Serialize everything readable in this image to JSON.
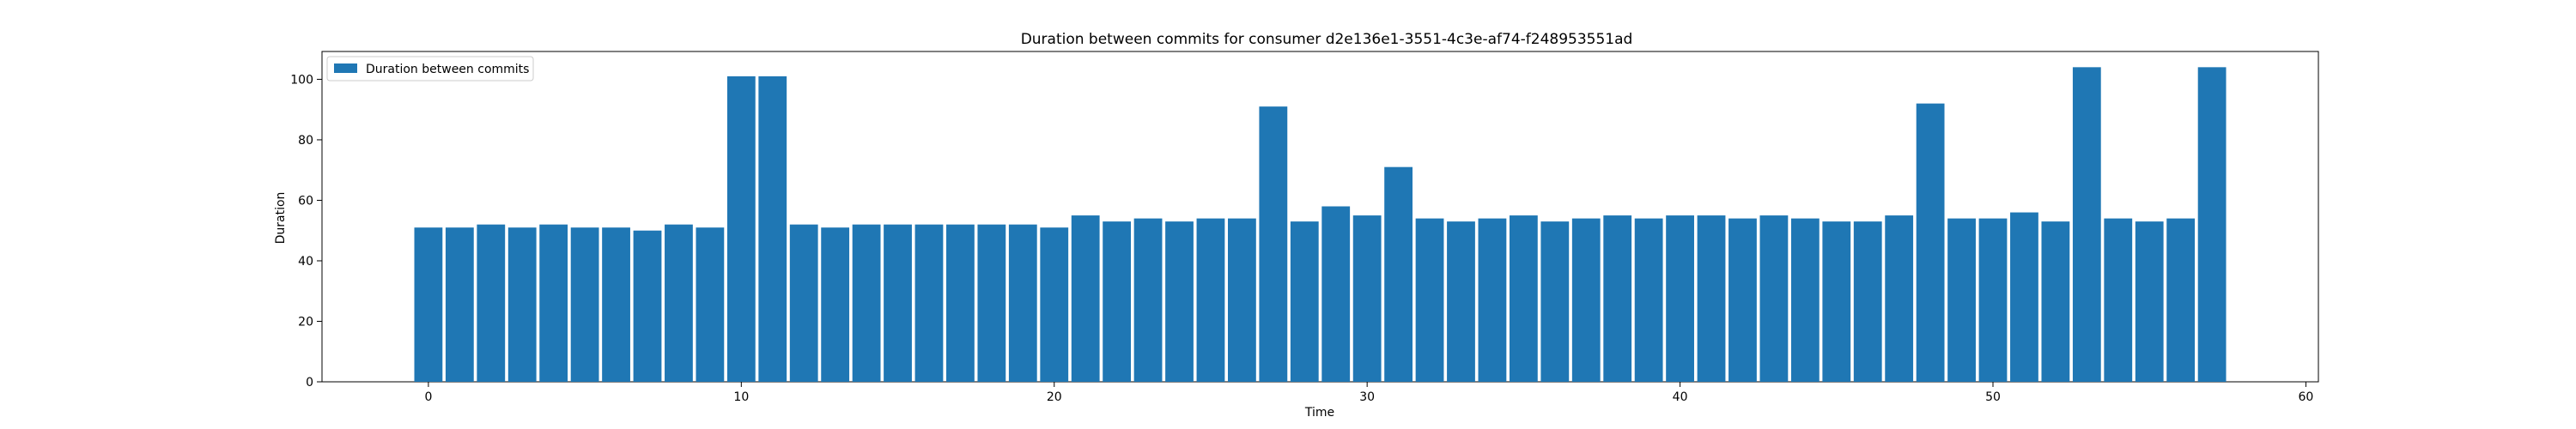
{
  "chart_data": {
    "type": "bar",
    "title": "Duration between commits for consumer d2e136e1-3551-4c3e-af74-f248953551ad",
    "xlabel": "Time",
    "ylabel": "Duration",
    "xlim": [
      -3.4,
      60.4
    ],
    "ylim": [
      0,
      109.2
    ],
    "x_ticks": [
      0,
      10,
      20,
      30,
      40,
      50,
      60
    ],
    "y_ticks": [
      0,
      20,
      40,
      60,
      80,
      100
    ],
    "grid": false,
    "legend_position": "upper-left",
    "bar_color": "#1f77b4",
    "series": [
      {
        "name": "Duration between commits",
        "x": [
          0,
          1,
          2,
          3,
          4,
          5,
          6,
          7,
          8,
          9,
          10,
          11,
          12,
          13,
          14,
          15,
          16,
          17,
          18,
          19,
          20,
          21,
          22,
          23,
          24,
          25,
          26,
          27,
          28,
          29,
          30,
          31,
          32,
          33,
          34,
          35,
          36,
          37,
          38,
          39,
          40,
          41,
          42,
          43,
          44,
          45,
          46,
          47,
          48,
          49,
          50,
          51,
          52,
          53,
          54,
          55,
          56,
          57
        ],
        "values": [
          51,
          51,
          52,
          51,
          52,
          51,
          51,
          50,
          52,
          51,
          101,
          101,
          52,
          51,
          52,
          52,
          52,
          52,
          52,
          52,
          51,
          55,
          53,
          54,
          53,
          54,
          54,
          91,
          53,
          58,
          55,
          71,
          54,
          53,
          54,
          55,
          53,
          54,
          55,
          54,
          55,
          55,
          54,
          55,
          54,
          53,
          53,
          55,
          92,
          54,
          54,
          56,
          53,
          104,
          54,
          53,
          54,
          104
        ]
      }
    ]
  }
}
